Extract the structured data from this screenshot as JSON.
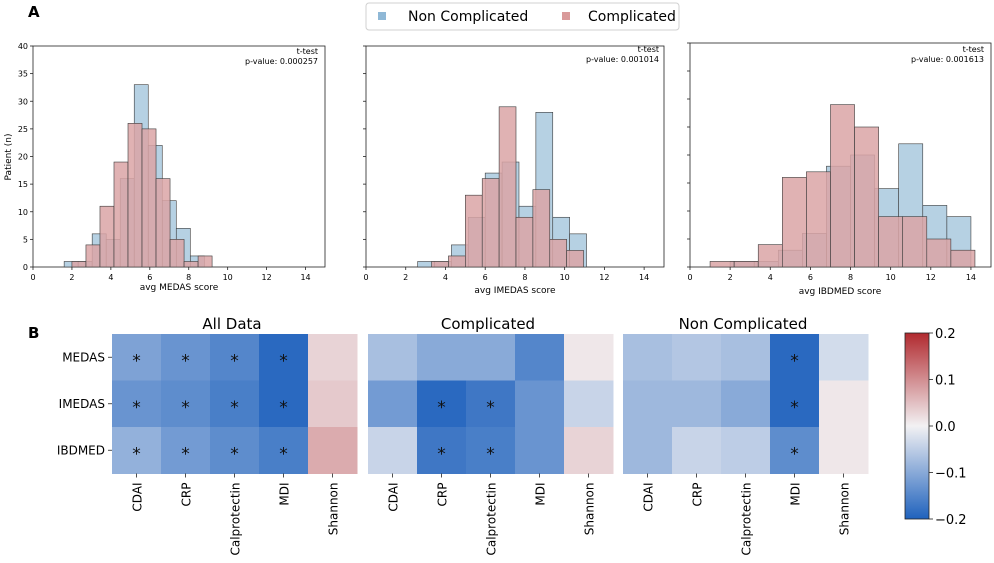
{
  "panel_labels": {
    "a": "A",
    "b": "B"
  },
  "legend": {
    "items": [
      {
        "label": "Non Complicated",
        "color": "#8fb8d6"
      },
      {
        "label": "Complicated",
        "color": "#d99a9a"
      }
    ]
  },
  "colors": {
    "non_complicated_fill": "#a9c9de",
    "complicated_fill": "#dba5a6",
    "overlap_fill": "#a7b3c6",
    "bar_edge": "#3b3b3b",
    "cmap_low": "#1f62bd",
    "cmap_mid": "#f2f1f3",
    "cmap_high": "#b12a2f"
  },
  "chart_data": [
    {
      "type": "bar",
      "subtype": "overlaid-histogram",
      "xlabel": "avg MEDAS score",
      "ylabel": "Patient (n)",
      "xlim": [
        0,
        15
      ],
      "ylim": [
        0,
        40
      ],
      "xticks": [
        0,
        2,
        4,
        6,
        8,
        10,
        12,
        14
      ],
      "yticks": [
        0,
        5,
        10,
        15,
        20,
        25,
        30,
        35,
        40
      ],
      "annotation": [
        "t-test",
        "p-value: 0.000257"
      ],
      "bin_width": 0.72,
      "series": [
        {
          "name": "Non Complicated",
          "bin_starts": [
            1.6,
            2.32,
            3.04,
            3.76,
            4.48,
            5.2,
            5.92,
            6.64,
            7.36,
            8.08,
            8.8
          ],
          "values": [
            1,
            1,
            6,
            5,
            16,
            33,
            22,
            12,
            7,
            2,
            0
          ]
        },
        {
          "name": "Complicated",
          "bin_starts": [
            2.0,
            2.72,
            3.44,
            4.16,
            4.88,
            5.6,
            6.32,
            7.04,
            7.76,
            8.48,
            9.2
          ],
          "values": [
            1,
            4,
            11,
            19,
            26,
            25,
            16,
            5,
            1,
            2,
            0
          ]
        }
      ]
    },
    {
      "type": "bar",
      "subtype": "overlaid-histogram",
      "xlabel": "avg IMEDAS score",
      "ylabel": "",
      "xlim": [
        0,
        15
      ],
      "ylim": [
        0,
        40
      ],
      "xticks": [
        0,
        2,
        4,
        6,
        8,
        10,
        12,
        14
      ],
      "yticks": [
        0,
        5,
        10,
        15,
        20,
        25,
        30,
        35,
        40
      ],
      "annotation": [
        "t-test",
        "p-value: 0.001014"
      ],
      "bin_width": 0.85,
      "series": [
        {
          "name": "Non Complicated",
          "bin_starts": [
            2.6,
            3.45,
            4.3,
            5.15,
            6.0,
            6.85,
            7.7,
            8.55,
            9.4,
            10.25,
            11.1
          ],
          "values": [
            1,
            1,
            4,
            9,
            17,
            19,
            11,
            28,
            9,
            6,
            0
          ]
        },
        {
          "name": "Complicated",
          "bin_starts": [
            3.3,
            4.15,
            5.0,
            5.85,
            6.7,
            7.55,
            8.4,
            9.25,
            10.1,
            10.95
          ],
          "values": [
            1,
            2,
            13,
            16,
            29,
            9,
            14,
            5,
            3,
            0
          ]
        }
      ]
    },
    {
      "type": "bar",
      "subtype": "overlaid-histogram",
      "xlabel": "avg IBDMED score",
      "ylabel": "",
      "xlim": [
        0,
        15
      ],
      "ylim": [
        0,
        40
      ],
      "xticks": [
        0,
        2,
        4,
        6,
        8,
        10,
        12,
        14
      ],
      "yticks": [
        0,
        5,
        10,
        15,
        20,
        25,
        30,
        35,
        40
      ],
      "annotation": [
        "t-test",
        "p-value: 0.001613"
      ],
      "bin_width": 1.2,
      "series": [
        {
          "name": "Non Complicated",
          "bin_starts": [
            2.0,
            3.2,
            4.4,
            5.6,
            6.8,
            8.0,
            9.2,
            10.4,
            11.6,
            12.8
          ],
          "values": [
            1,
            1,
            3,
            6,
            18,
            20,
            14,
            22,
            11,
            9
          ]
        },
        {
          "name": "Complicated",
          "bin_starts": [
            1.0,
            2.2,
            3.4,
            4.6,
            5.8,
            7.0,
            8.2,
            9.4,
            10.6,
            11.8,
            13.0
          ],
          "values": [
            1,
            1,
            4,
            16,
            17,
            29,
            25,
            9,
            9,
            5,
            3
          ]
        }
      ]
    },
    {
      "type": "heatmap",
      "title": "All Data",
      "rows": [
        "MEDAS",
        "IMEDAS",
        "IBDMED"
      ],
      "columns": [
        "CDAI",
        "CRP",
        "Calprotectin",
        "MDI",
        "Shannon"
      ],
      "values": [
        [
          -0.11,
          -0.13,
          -0.15,
          -0.19,
          0.03
        ],
        [
          -0.13,
          -0.14,
          -0.16,
          -0.19,
          0.04
        ],
        [
          -0.09,
          -0.12,
          -0.14,
          -0.16,
          0.07
        ]
      ],
      "significant": [
        [
          true,
          true,
          true,
          true,
          false
        ],
        [
          true,
          true,
          true,
          true,
          false
        ],
        [
          true,
          true,
          true,
          true,
          false
        ]
      ]
    },
    {
      "type": "heatmap",
      "title": "Complicated",
      "rows": [
        "MEDAS",
        "IMEDAS",
        "IBDMED"
      ],
      "columns": [
        "CDAI",
        "CRP",
        "Calprotectin",
        "MDI",
        "Shannon"
      ],
      "values": [
        [
          -0.07,
          -0.1,
          -0.1,
          -0.15,
          0.01
        ],
        [
          -0.12,
          -0.19,
          -0.17,
          -0.13,
          -0.04
        ],
        [
          -0.04,
          -0.17,
          -0.16,
          -0.13,
          0.03
        ]
      ],
      "significant": [
        [
          false,
          false,
          false,
          false,
          false
        ],
        [
          false,
          true,
          true,
          false,
          false
        ],
        [
          false,
          true,
          true,
          false,
          false
        ]
      ]
    },
    {
      "type": "heatmap",
      "title": "Non Complicated",
      "rows": [
        "MEDAS",
        "IMEDAS",
        "IBDMED"
      ],
      "columns": [
        "CDAI",
        "CRP",
        "Calprotectin",
        "MDI",
        "Shannon"
      ],
      "values": [
        [
          -0.07,
          -0.06,
          -0.07,
          -0.19,
          -0.03
        ],
        [
          -0.08,
          -0.08,
          -0.1,
          -0.19,
          0.01
        ],
        [
          -0.08,
          -0.04,
          -0.05,
          -0.14,
          0.01
        ]
      ],
      "significant": [
        [
          false,
          false,
          false,
          true,
          false
        ],
        [
          false,
          false,
          false,
          true,
          false
        ],
        [
          false,
          false,
          false,
          true,
          false
        ]
      ]
    },
    {
      "type": "colorbar",
      "range": [
        -0.2,
        0.2
      ],
      "ticks": [
        -0.2,
        -0.1,
        0.0,
        0.1,
        0.2
      ],
      "tick_labels": [
        "−0.2",
        "−0.1",
        "0.0",
        "0.1",
        "0.2"
      ]
    }
  ]
}
